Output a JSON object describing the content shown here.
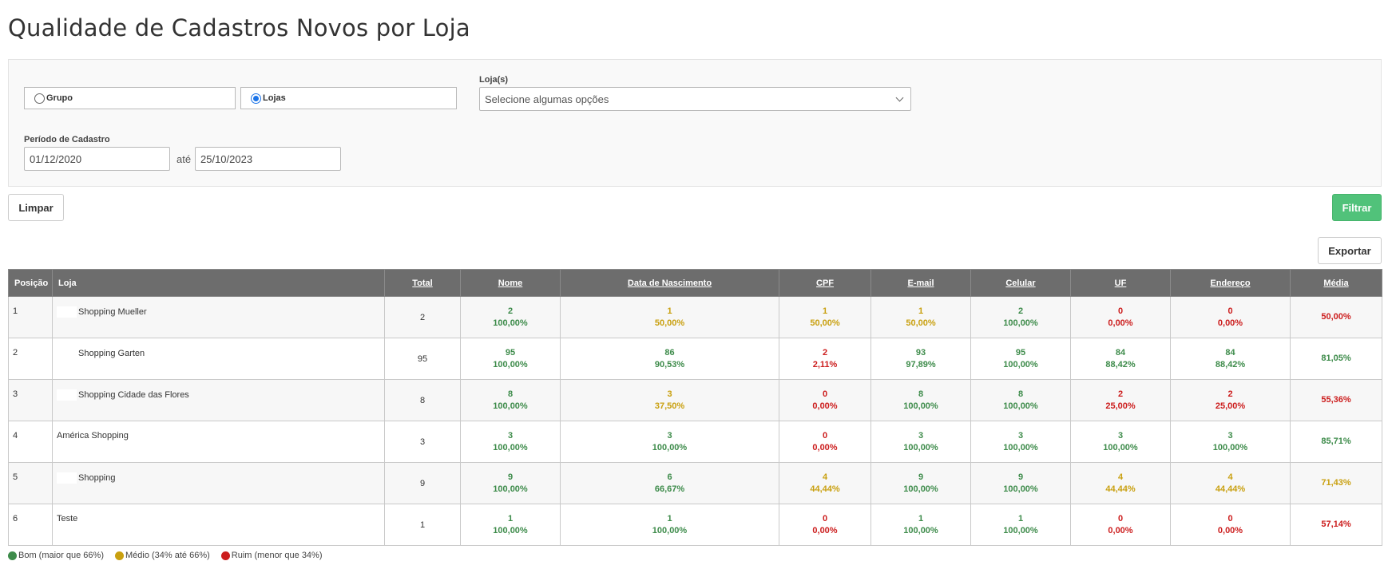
{
  "page": {
    "title": "Qualidade de Cadastros Novos por Loja"
  },
  "filters": {
    "radio_grupo_label": "Grupo",
    "radio_lojas_label": "Lojas",
    "selected_radio": "Lojas",
    "lojas_label": "Loja(s)",
    "lojas_placeholder": "Selecione algumas opções",
    "periodo_label": "Período de Cadastro",
    "date_from": "01/12/2020",
    "date_separator": "até",
    "date_to": "25/10/2023"
  },
  "actions": {
    "clear_label": "Limpar",
    "filter_label": "Filtrar",
    "export_label": "Exportar"
  },
  "colors": {
    "good": "#3d8b4a",
    "medium": "#c9a010",
    "bad": "#cc1d1d",
    "primary_button": "#51c27a",
    "header_bg": "#6d6d6d"
  },
  "table": {
    "headers": [
      "Posição",
      "Loja",
      "Total",
      "Nome",
      "Data de Nascimento",
      "CPF",
      "E-mail",
      "Celular",
      "UF",
      "Endereço",
      "Média"
    ],
    "rows": [
      {
        "pos": "1",
        "loja": "Shopping Mueller",
        "total": "2",
        "cells": [
          {
            "n": "2",
            "p": "100,00%",
            "s": "good"
          },
          {
            "n": "1",
            "p": "50,00%",
            "s": "mid"
          },
          {
            "n": "1",
            "p": "50,00%",
            "s": "mid"
          },
          {
            "n": "1",
            "p": "50,00%",
            "s": "mid"
          },
          {
            "n": "2",
            "p": "100,00%",
            "s": "good"
          },
          {
            "n": "0",
            "p": "0,00%",
            "s": "bad"
          },
          {
            "n": "0",
            "p": "0,00%",
            "s": "bad"
          }
        ],
        "media": "50,00%",
        "media_s": "bad"
      },
      {
        "pos": "2",
        "loja": "Shopping Garten",
        "total": "95",
        "cells": [
          {
            "n": "95",
            "p": "100,00%",
            "s": "good"
          },
          {
            "n": "86",
            "p": "90,53%",
            "s": "good"
          },
          {
            "n": "2",
            "p": "2,11%",
            "s": "bad"
          },
          {
            "n": "93",
            "p": "97,89%",
            "s": "good"
          },
          {
            "n": "95",
            "p": "100,00%",
            "s": "good"
          },
          {
            "n": "84",
            "p": "88,42%",
            "s": "good"
          },
          {
            "n": "84",
            "p": "88,42%",
            "s": "good"
          }
        ],
        "media": "81,05%",
        "media_s": "good"
      },
      {
        "pos": "3",
        "loja": "Shopping Cidade das Flores",
        "total": "8",
        "cells": [
          {
            "n": "8",
            "p": "100,00%",
            "s": "good"
          },
          {
            "n": "3",
            "p": "37,50%",
            "s": "mid"
          },
          {
            "n": "0",
            "p": "0,00%",
            "s": "bad"
          },
          {
            "n": "8",
            "p": "100,00%",
            "s": "good"
          },
          {
            "n": "8",
            "p": "100,00%",
            "s": "good"
          },
          {
            "n": "2",
            "p": "25,00%",
            "s": "bad"
          },
          {
            "n": "2",
            "p": "25,00%",
            "s": "bad"
          }
        ],
        "media": "55,36%",
        "media_s": "bad"
      },
      {
        "pos": "4",
        "loja": "América Shopping",
        "total": "3",
        "cells": [
          {
            "n": "3",
            "p": "100,00%",
            "s": "good"
          },
          {
            "n": "3",
            "p": "100,00%",
            "s": "good"
          },
          {
            "n": "0",
            "p": "0,00%",
            "s": "bad"
          },
          {
            "n": "3",
            "p": "100,00%",
            "s": "good"
          },
          {
            "n": "3",
            "p": "100,00%",
            "s": "good"
          },
          {
            "n": "3",
            "p": "100,00%",
            "s": "good"
          },
          {
            "n": "3",
            "p": "100,00%",
            "s": "good"
          }
        ],
        "media": "85,71%",
        "media_s": "good"
      },
      {
        "pos": "5",
        "loja": "Shopping",
        "total": "9",
        "cells": [
          {
            "n": "9",
            "p": "100,00%",
            "s": "good"
          },
          {
            "n": "6",
            "p": "66,67%",
            "s": "good"
          },
          {
            "n": "4",
            "p": "44,44%",
            "s": "mid"
          },
          {
            "n": "9",
            "p": "100,00%",
            "s": "good"
          },
          {
            "n": "9",
            "p": "100,00%",
            "s": "good"
          },
          {
            "n": "4",
            "p": "44,44%",
            "s": "mid"
          },
          {
            "n": "4",
            "p": "44,44%",
            "s": "mid"
          }
        ],
        "media": "71,43%",
        "media_s": "mid"
      },
      {
        "pos": "6",
        "loja": "Teste",
        "total": "1",
        "cells": [
          {
            "n": "1",
            "p": "100,00%",
            "s": "good"
          },
          {
            "n": "1",
            "p": "100,00%",
            "s": "good"
          },
          {
            "n": "0",
            "p": "0,00%",
            "s": "bad"
          },
          {
            "n": "1",
            "p": "100,00%",
            "s": "good"
          },
          {
            "n": "1",
            "p": "100,00%",
            "s": "good"
          },
          {
            "n": "0",
            "p": "0,00%",
            "s": "bad"
          },
          {
            "n": "0",
            "p": "0,00%",
            "s": "bad"
          }
        ],
        "media": "57,14%",
        "media_s": "bad"
      }
    ]
  },
  "legend": [
    {
      "label": "Bom (maior que 66%)",
      "color": "#3d8b4a"
    },
    {
      "label": "Médio (34% até 66%)",
      "color": "#c9a010"
    },
    {
      "label": "Ruim (menor que 34%)",
      "color": "#cc1d1d"
    }
  ]
}
